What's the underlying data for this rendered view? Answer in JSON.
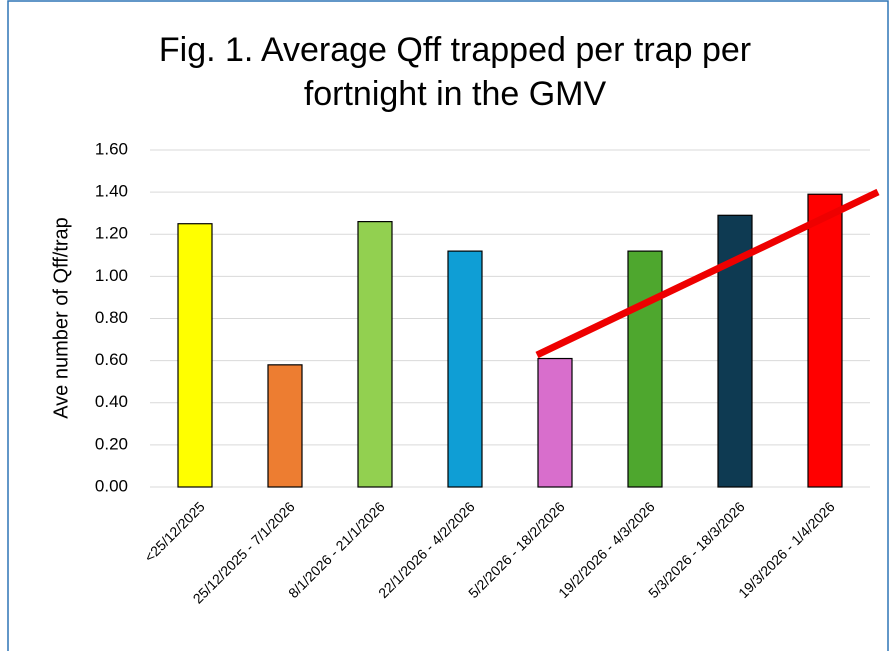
{
  "chart_data": {
    "type": "bar",
    "title": "Fig. 1. Average Qff trapped per trap per fortnight in the GMV",
    "y_label": "Ave number of Qff/trap",
    "categories": [
      "<25/12/2025",
      "25/12/2025 - 7/1/2026",
      "8/1/2026 - 21/1/2026",
      "22/1/2026 - 4/2/2026",
      "5/2/2026 - 18/2/2026",
      "19/2/2026 - 4/3/2026",
      "5/3/2026 - 18/3/2026",
      "19/3/2026 - 1/4/2026"
    ],
    "values": [
      1.25,
      0.58,
      1.26,
      1.12,
      0.61,
      1.12,
      1.29,
      1.39
    ],
    "colors": [
      "#ffff00",
      "#ed7d31",
      "#92d050",
      "#0f9ed5",
      "#d86ecc",
      "#4ea72e",
      "#0e3a52",
      "#ff0000"
    ],
    "ylim": [
      0,
      1.6
    ],
    "yticks": [
      {
        "value": 0,
        "label": "0.00"
      },
      {
        "value": 0.2,
        "label": "0.20"
      },
      {
        "value": 0.4,
        "label": "0.40"
      },
      {
        "value": 0.6,
        "label": "0.60"
      },
      {
        "value": 0.8,
        "label": "0.80"
      },
      {
        "value": 1,
        "label": "1.00"
      },
      {
        "value": 1.2,
        "label": "1.20"
      },
      {
        "value": 1.4,
        "label": "1.40"
      },
      {
        "value": 1.6,
        "label": "1.60"
      }
    ],
    "grid": true
  }
}
